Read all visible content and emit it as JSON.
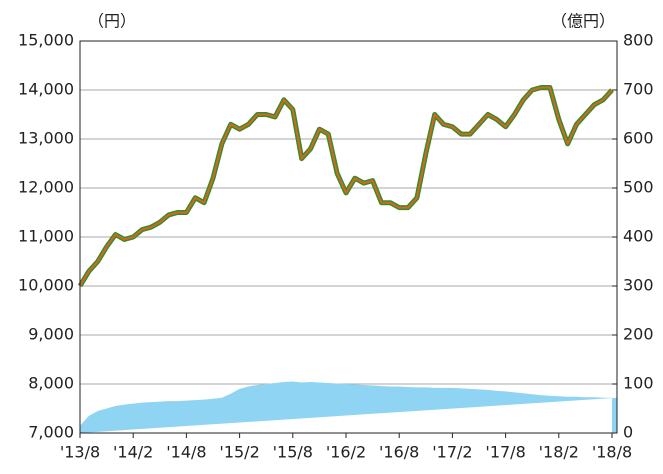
{
  "chart_data": {
    "type": "line",
    "y_label": "（円）",
    "y2_label": "（億円）",
    "categories": [
      "'13/8",
      null,
      null,
      null,
      null,
      null,
      "'14/2",
      null,
      null,
      null,
      null,
      null,
      "'14/8",
      null,
      null,
      null,
      null,
      null,
      "'15/2",
      null,
      null,
      null,
      null,
      null,
      "'15/8",
      null,
      null,
      null,
      null,
      null,
      "'16/2",
      null,
      null,
      null,
      null,
      null,
      "'16/8",
      null,
      null,
      null,
      null,
      null,
      "'17/2",
      null,
      null,
      null,
      null,
      null,
      "'17/8",
      null,
      null,
      null,
      null,
      null,
      "'18/2",
      null,
      null,
      null,
      null,
      null,
      "'18/8"
    ],
    "series": [
      {
        "type": "line",
        "color": "#d2691e",
        "outline": "#3a8a2e",
        "values": [
          10000,
          10300,
          10500,
          10800,
          11050,
          10950,
          11000,
          11150,
          11200,
          11300,
          11450,
          11500,
          11500,
          11800,
          11700,
          12200,
          12900,
          13300,
          13200,
          13300,
          13500,
          13500,
          13450,
          13800,
          13600,
          12600,
          12800,
          13200,
          13100,
          12300,
          11900,
          12200,
          12100,
          12150,
          11700,
          11700,
          11600,
          11600,
          11800,
          12700,
          13500,
          13300,
          13250,
          13100,
          13100,
          13300,
          13500,
          13400,
          13250,
          13500,
          13800,
          14000,
          14050,
          14050,
          13400,
          12900,
          13300,
          13500,
          13700,
          13800,
          14000
        ]
      },
      {
        "type": "area",
        "axis": "y2",
        "color": "#8fd4f3",
        "values": [
          15,
          35,
          45,
          50,
          55,
          58,
          60,
          62,
          63,
          64,
          65,
          65,
          66,
          67,
          68,
          70,
          72,
          80,
          90,
          95,
          98,
          100,
          102,
          104,
          105,
          103,
          104,
          103,
          102,
          101,
          100,
          99,
          98,
          97,
          96,
          95,
          95,
          94,
          93,
          93,
          92,
          92,
          92,
          91,
          90,
          89,
          88,
          86,
          85,
          83,
          81,
          79,
          77,
          76,
          75,
          74,
          74,
          73,
          73,
          72,
          72
        ]
      }
    ],
    "ylim": [
      7000,
      15000
    ],
    "yticks": [
      {
        "value": 7000,
        "label": "7,000"
      },
      {
        "value": 8000,
        "label": "8,000"
      },
      {
        "value": 9000,
        "label": "9,000"
      },
      {
        "value": 10000,
        "label": "10,000"
      },
      {
        "value": 11000,
        "label": "11,000"
      },
      {
        "value": 12000,
        "label": "12,000"
      },
      {
        "value": 13000,
        "label": "13,000"
      },
      {
        "value": 14000,
        "label": "14,000"
      },
      {
        "value": 15000,
        "label": "15,000"
      }
    ],
    "y2lim": [
      0,
      800
    ],
    "y2ticks": [
      0,
      100,
      200,
      300,
      400,
      500,
      600,
      700,
      800
    ],
    "grid": true
  }
}
